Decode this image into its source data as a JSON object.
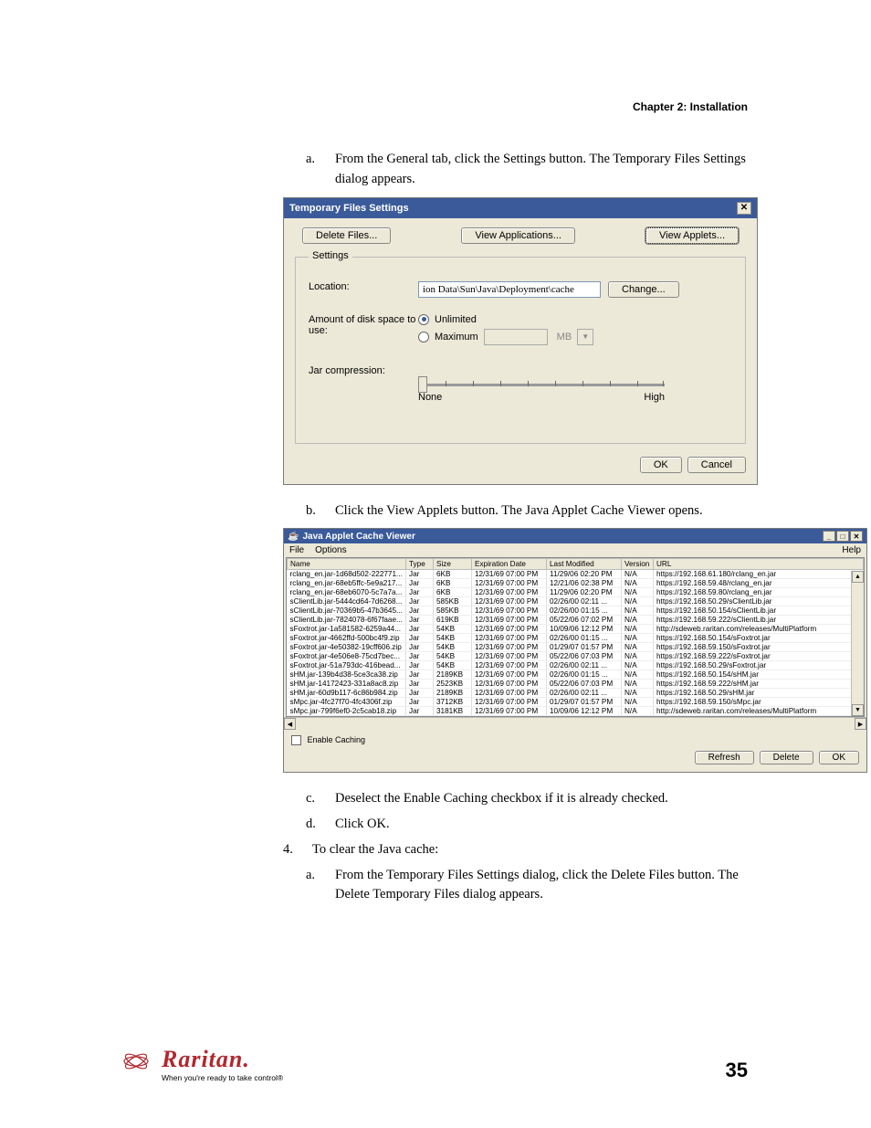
{
  "chapter_header": "Chapter 2: Installation",
  "step_a": {
    "marker": "a.",
    "text": "From the General tab, click the Settings button. The Temporary Files Settings dialog appears."
  },
  "dialog1": {
    "title": "Temporary Files Settings",
    "delete_btn": "Delete Files...",
    "view_apps_btn": "View Applications...",
    "view_applets_btn": "View Applets...",
    "legend": "Settings",
    "location_label": "Location:",
    "location_value": "ion Data\\Sun\\Java\\Deployment\\cache",
    "change_btn": "Change...",
    "disk_label": "Amount of disk space to use:",
    "unlimited": "Unlimited",
    "maximum": "Maximum",
    "mb": "MB",
    "jar_label": "Jar compression:",
    "none": "None",
    "high": "High",
    "ok": "OK",
    "cancel": "Cancel"
  },
  "step_b": {
    "marker": "b.",
    "text": "Click the View Applets button. The Java Applet Cache Viewer opens."
  },
  "dialog2": {
    "title": "Java Applet Cache Viewer",
    "menu_file": "File",
    "menu_options": "Options",
    "menu_help": "Help",
    "cols": {
      "name": "Name",
      "type": "Type",
      "size": "Size",
      "exp": "Expiration Date",
      "mod": "Last Modified",
      "ver": "Version",
      "url": "URL"
    },
    "rows": [
      {
        "name": "rclang_en.jar-1d68d502-222771...",
        "type": "Jar",
        "size": "6KB",
        "exp": "12/31/69 07:00 PM",
        "mod": "11/29/06 02:20 PM",
        "ver": "N/A",
        "url": "https://192.168.61.180/rclang_en.jar"
      },
      {
        "name": "rclang_en.jar-68eb5ffc-5e9a217...",
        "type": "Jar",
        "size": "6KB",
        "exp": "12/31/69 07:00 PM",
        "mod": "12/21/06 02:38 PM",
        "ver": "N/A",
        "url": "https://192.168.59.48/rclang_en.jar"
      },
      {
        "name": "rclang_en.jar-68eb6070-5c7a7a...",
        "type": "Jar",
        "size": "6KB",
        "exp": "12/31/69 07:00 PM",
        "mod": "11/29/06 02:20 PM",
        "ver": "N/A",
        "url": "https://192.168.59.80/rclang_en.jar"
      },
      {
        "name": "sClientLib.jar-5444cd64-7d6268...",
        "type": "Jar",
        "size": "585KB",
        "exp": "12/31/69 07:00 PM",
        "mod": "02/26/00 02:11 ...",
        "ver": "N/A",
        "url": "https://192.168.50.29/sClientLib.jar"
      },
      {
        "name": "sClientLib.jar-70369b5-47b3645...",
        "type": "Jar",
        "size": "585KB",
        "exp": "12/31/69 07:00 PM",
        "mod": "02/26/00 01:15 ...",
        "ver": "N/A",
        "url": "https://192.168.50.154/sClientLib.jar"
      },
      {
        "name": "sClientLib.jar-7824078-6f67faae...",
        "type": "Jar",
        "size": "619KB",
        "exp": "12/31/69 07:00 PM",
        "mod": "05/22/06 07:02 PM",
        "ver": "N/A",
        "url": "https://192.168.59.222/sClientLib.jar"
      },
      {
        "name": "sFoxtrot.jar-1a581582-6259a44...",
        "type": "Jar",
        "size": "54KB",
        "exp": "12/31/69 07:00 PM",
        "mod": "10/09/06 12:12 PM",
        "ver": "N/A",
        "url": "http://sdeweb.raritan.com/releases/MultiPlatform"
      },
      {
        "name": "sFoxtrot.jar-4662ffd-500bc4f9.zip",
        "type": "Jar",
        "size": "54KB",
        "exp": "12/31/69 07:00 PM",
        "mod": "02/26/00 01:15 ...",
        "ver": "N/A",
        "url": "https://192.168.50.154/sFoxtrot.jar"
      },
      {
        "name": "sFoxtrot.jar-4e50382-19cff606.zip",
        "type": "Jar",
        "size": "54KB",
        "exp": "12/31/69 07:00 PM",
        "mod": "01/29/07 01:57 PM",
        "ver": "N/A",
        "url": "https://192.168.59.150/sFoxtrot.jar"
      },
      {
        "name": "sFoxtrot.jar-4e506e8-75cd7bec...",
        "type": "Jar",
        "size": "54KB",
        "exp": "12/31/69 07:00 PM",
        "mod": "05/22/06 07:03 PM",
        "ver": "N/A",
        "url": "https://192.168.59.222/sFoxtrot.jar"
      },
      {
        "name": "sFoxtrot.jar-51a793dc-416bead...",
        "type": "Jar",
        "size": "54KB",
        "exp": "12/31/69 07:00 PM",
        "mod": "02/26/00 02:11 ...",
        "ver": "N/A",
        "url": "https://192.168.50.29/sFoxtrot.jar"
      },
      {
        "name": "sHM.jar-139b4d38-5ce3ca38.zip",
        "type": "Jar",
        "size": "2189KB",
        "exp": "12/31/69 07:00 PM",
        "mod": "02/26/00 01:15 ...",
        "ver": "N/A",
        "url": "https://192.168.50.154/sHM.jar"
      },
      {
        "name": "sHM.jar-14172423-331a8ac8.zip",
        "type": "Jar",
        "size": "2523KB",
        "exp": "12/31/69 07:00 PM",
        "mod": "05/22/06 07:03 PM",
        "ver": "N/A",
        "url": "https://192.168.59.222/sHM.jar"
      },
      {
        "name": "sHM.jar-60d9b117-6c86b984.zip",
        "type": "Jar",
        "size": "2189KB",
        "exp": "12/31/69 07:00 PM",
        "mod": "02/26/00 02:11 ...",
        "ver": "N/A",
        "url": "https://192.168.50.29/sHM.jar"
      },
      {
        "name": "sMpc.jar-4fc27f70-4fc4306f.zip",
        "type": "Jar",
        "size": "3712KB",
        "exp": "12/31/69 07:00 PM",
        "mod": "01/29/07 01:57 PM",
        "ver": "N/A",
        "url": "https://192.168.59.150/sMpc.jar"
      },
      {
        "name": "sMpc.jar-799f6ef0-2c5cab18.zip",
        "type": "Jar",
        "size": "3181KB",
        "exp": "12/31/69 07:00 PM",
        "mod": "10/09/06 12:12 PM",
        "ver": "N/A",
        "url": "http://sdeweb.raritan.com/releases/MultiPlatform"
      }
    ],
    "enable_caching": "Enable Caching",
    "refresh": "Refresh",
    "delete": "Delete",
    "ok": "OK"
  },
  "step_c": {
    "marker": "c.",
    "text": "Deselect the Enable Caching checkbox if it is already checked."
  },
  "step_d": {
    "marker": "d.",
    "text": "Click OK."
  },
  "step_4": {
    "marker": "4.",
    "text": "To clear the Java cache:"
  },
  "step_4a": {
    "marker": "a.",
    "text": "From the Temporary Files Settings dialog, click the Delete Files button. The Delete Temporary Files dialog appears."
  },
  "footer": {
    "logo_name": "Raritan.",
    "logo_tag": "When you're ready to take control®",
    "pagenum": "35"
  }
}
